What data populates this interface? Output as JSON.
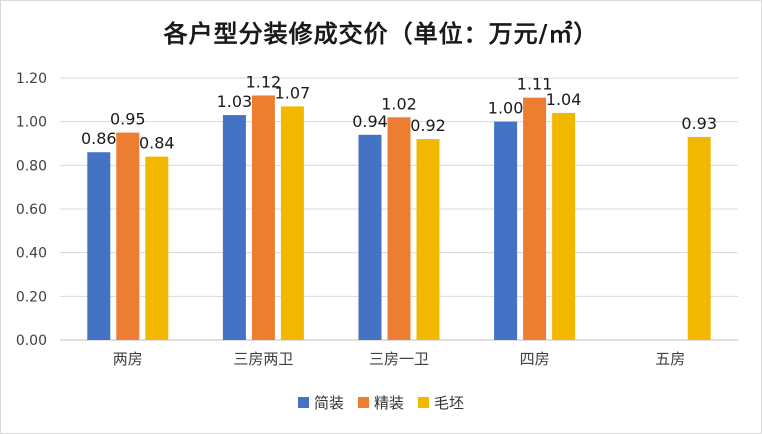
{
  "chart_data": {
    "type": "bar",
    "title": "各户型分装修成交价（单位：万元/㎡）",
    "categories": [
      "两房",
      "三房两卫",
      "三房一卫",
      "四房",
      "五房"
    ],
    "series": [
      {
        "name": "简装",
        "color": "#4472C4",
        "values": [
          0.86,
          1.03,
          0.94,
          1.0,
          null
        ]
      },
      {
        "name": "精装",
        "color": "#ED7D31",
        "values": [
          0.95,
          1.12,
          1.02,
          1.11,
          null
        ]
      },
      {
        "name": "毛坯",
        "color": "#F2B800",
        "values": [
          0.84,
          1.07,
          0.92,
          1.04,
          0.93
        ]
      }
    ],
    "yticks": [
      "0.00",
      "0.20",
      "0.40",
      "0.60",
      "0.80",
      "1.00",
      "1.20"
    ],
    "ylim": [
      0,
      1.2
    ],
    "grid": true,
    "legend_position": "bottom"
  }
}
